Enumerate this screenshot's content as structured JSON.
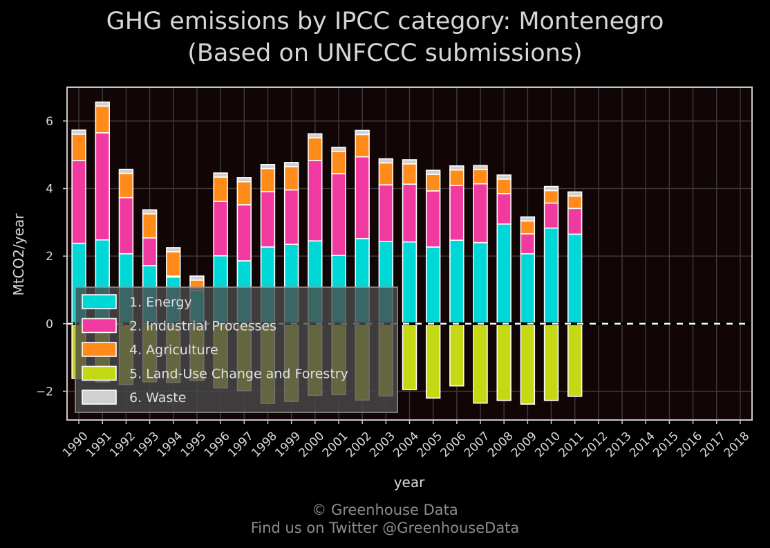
{
  "chart_data": {
    "type": "bar",
    "stacked": true,
    "title": "GHG emissions by IPCC category: Montenegro",
    "subtitle": "(Based on UNFCCC submissions)",
    "xlabel": "year",
    "ylabel": "MtCO2/year",
    "ylim": [
      -2.85,
      7.0
    ],
    "yticks": [
      -2,
      0,
      2,
      4,
      6
    ],
    "grid": true,
    "legend_position": "lower-left",
    "categories": [
      "1990",
      "1991",
      "1992",
      "1993",
      "1994",
      "1995",
      "1996",
      "1997",
      "1998",
      "1999",
      "2000",
      "2001",
      "2002",
      "2003",
      "2004",
      "2005",
      "2006",
      "2007",
      "2008",
      "2009",
      "2010",
      "2011",
      "2012",
      "2013",
      "2014",
      "2015",
      "2016",
      "2017",
      "2018"
    ],
    "series": [
      {
        "name": "1. Energy",
        "color": "#00d8d8",
        "values": [
          2.38,
          2.48,
          2.07,
          1.72,
          1.38,
          0.99,
          2.01,
          1.86,
          2.27,
          2.35,
          2.45,
          2.02,
          2.52,
          2.43,
          2.42,
          2.27,
          2.47,
          2.4,
          2.95,
          2.07,
          2.83,
          2.65,
          null,
          null,
          null,
          null,
          null,
          null,
          null
        ]
      },
      {
        "name": "2. Industrial Processes",
        "color": "#f03aa0",
        "values": [
          2.45,
          3.17,
          1.66,
          0.82,
          0.03,
          0.06,
          1.61,
          1.66,
          1.64,
          1.61,
          2.38,
          2.42,
          2.42,
          1.68,
          1.71,
          1.66,
          1.62,
          1.74,
          0.9,
          0.59,
          0.74,
          0.76,
          null,
          null,
          null,
          null,
          null,
          null,
          null
        ]
      },
      {
        "name": "4. Agriculture",
        "color": "#ff8c1a",
        "values": [
          0.78,
          0.79,
          0.72,
          0.71,
          0.72,
          0.24,
          0.72,
          0.68,
          0.68,
          0.69,
          0.67,
          0.66,
          0.66,
          0.65,
          0.6,
          0.49,
          0.46,
          0.42,
          0.43,
          0.38,
          0.37,
          0.37,
          null,
          null,
          null,
          null,
          null,
          null,
          null
        ]
      },
      {
        "name": "5. Land-Use Change and Forestry",
        "color": "#c5d814",
        "values": [
          -1.62,
          -1.72,
          -1.8,
          -1.72,
          -1.74,
          -1.68,
          -1.9,
          -1.98,
          -2.36,
          -2.3,
          -2.12,
          -2.1,
          -2.26,
          -2.14,
          -1.95,
          -2.2,
          -1.84,
          -2.35,
          -2.27,
          -2.38,
          -2.27,
          -2.15,
          null,
          null,
          null,
          null,
          null,
          null,
          null
        ]
      },
      {
        "name": "6. Waste",
        "color": "#d0d0d0",
        "values": [
          0.12,
          0.12,
          0.12,
          0.12,
          0.12,
          0.12,
          0.12,
          0.12,
          0.12,
          0.12,
          0.12,
          0.12,
          0.12,
          0.12,
          0.12,
          0.12,
          0.12,
          0.12,
          0.12,
          0.12,
          0.12,
          0.12,
          null,
          null,
          null,
          null,
          null,
          null,
          null
        ]
      }
    ]
  },
  "colors": {
    "background": "#000000",
    "plot_background": "#110505",
    "grid": "#3a3a3a",
    "axis_frame": "#c8c8c8",
    "bar_edge": "#ffffff"
  },
  "footer": {
    "line1": "© Greenhouse Data",
    "line2": "Find us on Twitter @GreenhouseData"
  }
}
